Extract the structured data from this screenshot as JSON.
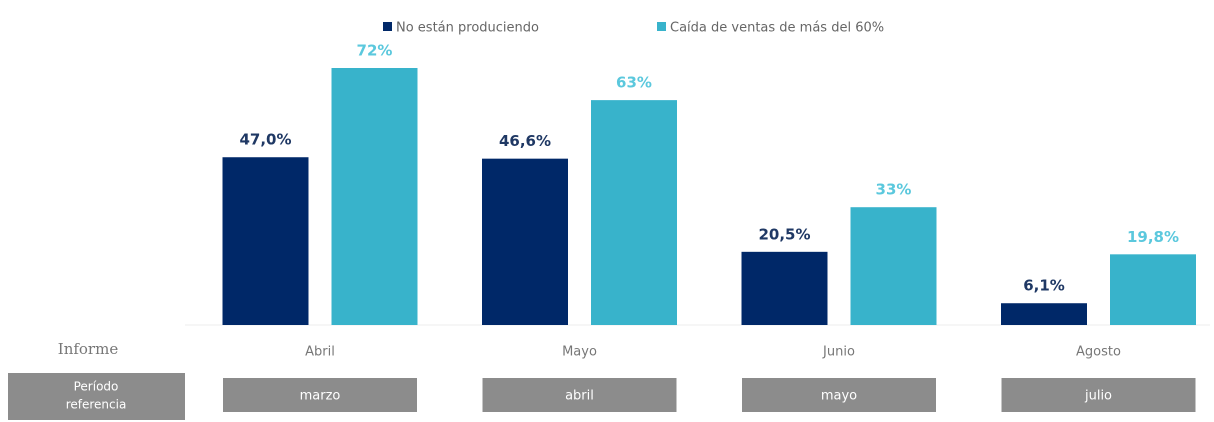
{
  "chart_data": {
    "type": "bar",
    "categories": [
      "Abril",
      "Mayo",
      "Junio",
      "Agosto"
    ],
    "series": [
      {
        "name": "No están produciendo",
        "color": "#002868",
        "label_color": "#1f3864",
        "values": [
          47.0,
          46.6,
          20.5,
          6.1
        ],
        "value_labels": [
          "47,0%",
          "46,6%",
          "20,5%",
          "6,1%"
        ]
      },
      {
        "name": "Caída de ventas de más del 60%",
        "color": "#38b3cb",
        "label_color": "#5bc8dd",
        "values": [
          72,
          63,
          33,
          19.8
        ],
        "value_labels": [
          "72%",
          "63%",
          "33%",
          "19,8%"
        ]
      }
    ],
    "row_label": "Informe",
    "period_header": [
      "Período",
      "referencia"
    ],
    "periods": [
      "marzo",
      "abril",
      "mayo",
      "julio"
    ]
  }
}
